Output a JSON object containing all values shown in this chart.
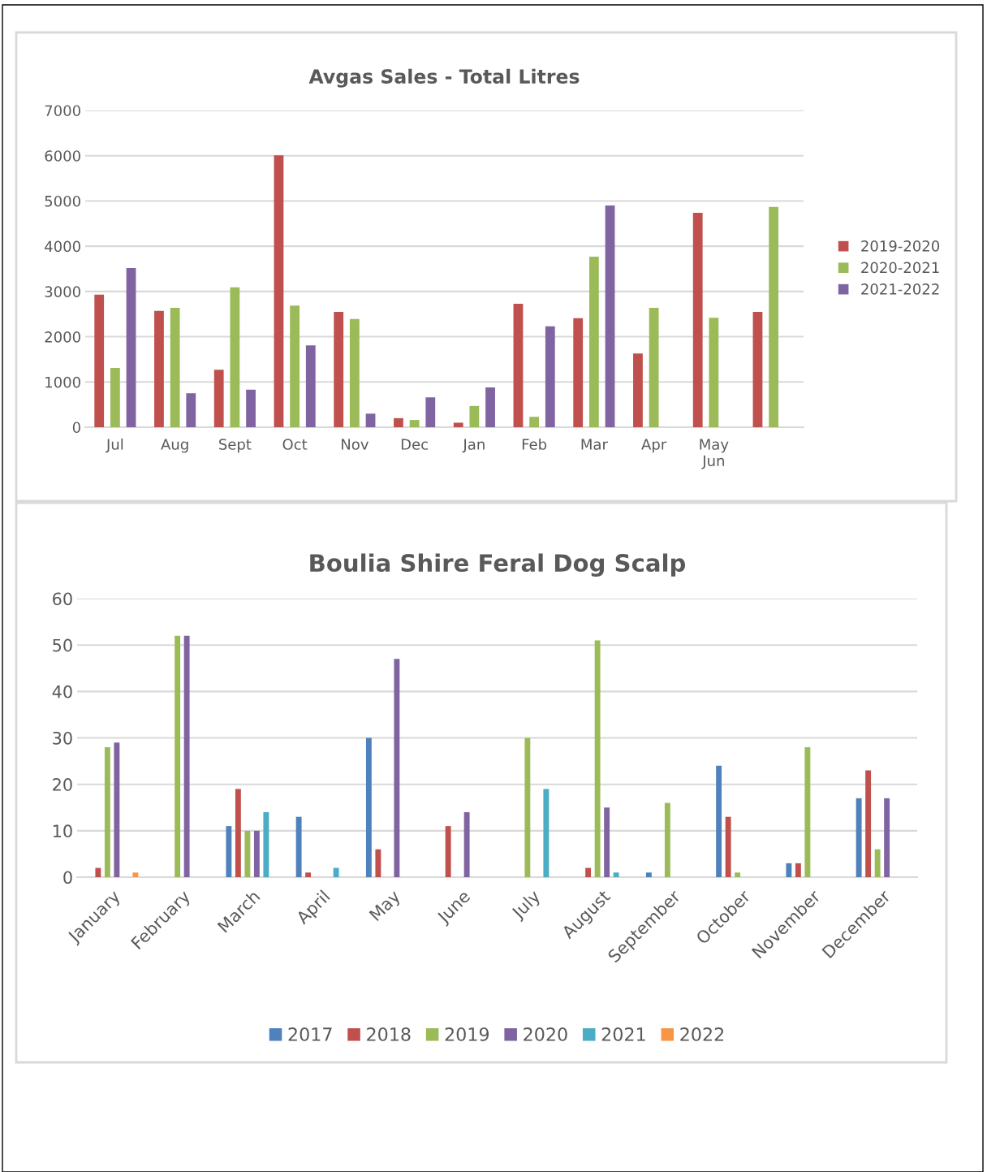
{
  "chart_data": [
    {
      "type": "bar",
      "title": "Avgas Sales - Total Litres",
      "categories": [
        "Jul",
        "Aug",
        "Sept",
        "Oct",
        "Nov",
        "Dec",
        "Jan",
        "Feb",
        "Mar",
        "Apr",
        "May\nJun",
        null
      ],
      "series": [
        {
          "name": "2019-2020",
          "color": "#c0504d",
          "values": [
            2930,
            2570,
            1270,
            6010,
            2550,
            200,
            100,
            2730,
            2410,
            1630,
            4740,
            2550
          ]
        },
        {
          "name": "2020-2021",
          "color": "#9bbb59",
          "values": [
            1310,
            2640,
            3090,
            2690,
            2390,
            160,
            470,
            230,
            3770,
            2640,
            2420,
            4870
          ]
        },
        {
          "name": "2021-2022",
          "color": "#8064a2",
          "values": [
            3520,
            750,
            830,
            1810,
            300,
            660,
            880,
            2230,
            4900,
            null,
            null,
            null
          ]
        }
      ],
      "ylim": [
        0,
        7000
      ],
      "yticks": [
        0,
        1000,
        2000,
        3000,
        4000,
        5000,
        6000,
        7000
      ],
      "grid": "y",
      "legend": "right"
    },
    {
      "type": "bar",
      "title": "Boulia Shire Feral Dog Scalp",
      "categories": [
        "January",
        "February",
        "March",
        "April",
        "May",
        "June",
        "July",
        "August",
        "September",
        "October",
        "November",
        "December"
      ],
      "series": [
        {
          "name": "2017",
          "color": "#4f81bd",
          "values": [
            null,
            null,
            11,
            13,
            30,
            null,
            null,
            null,
            1,
            24,
            3,
            17
          ]
        },
        {
          "name": "2018",
          "color": "#c0504d",
          "values": [
            2,
            null,
            19,
            1,
            6,
            11,
            null,
            2,
            null,
            13,
            3,
            23
          ]
        },
        {
          "name": "2019",
          "color": "#9bbb59",
          "values": [
            28,
            52,
            10,
            null,
            null,
            null,
            30,
            51,
            16,
            1,
            28,
            6
          ]
        },
        {
          "name": "2020",
          "color": "#8064a2",
          "values": [
            29,
            52,
            10,
            null,
            47,
            14,
            null,
            15,
            null,
            null,
            null,
            17
          ]
        },
        {
          "name": "2021",
          "color": "#4bacc6",
          "values": [
            null,
            null,
            14,
            2,
            null,
            null,
            19,
            1,
            null,
            null,
            null,
            null
          ]
        },
        {
          "name": "2022",
          "color": "#f79646",
          "values": [
            1,
            null,
            null,
            null,
            null,
            null,
            null,
            null,
            null,
            null,
            null,
            null
          ]
        }
      ],
      "ylim": [
        0,
        60
      ],
      "yticks": [
        0,
        10,
        20,
        30,
        40,
        50,
        60
      ],
      "grid": "y",
      "legend": "bottom"
    }
  ]
}
